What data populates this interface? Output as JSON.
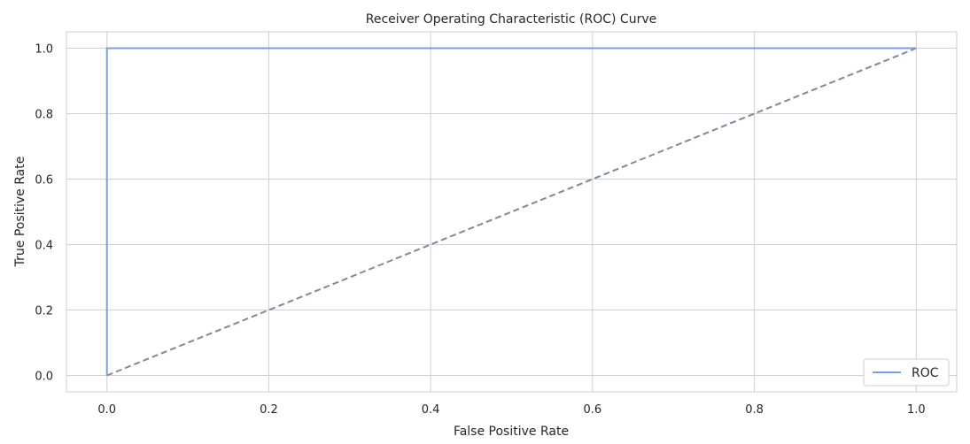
{
  "chart_data": {
    "type": "line",
    "title": "Receiver Operating Characteristic (ROC) Curve",
    "xlabel": "False Positive Rate",
    "ylabel": "True Positive Rate",
    "xlim": [
      -0.05,
      1.05
    ],
    "ylim": [
      -0.05,
      1.05
    ],
    "xticks": [
      0.0,
      0.2,
      0.4,
      0.6,
      0.8,
      1.0
    ],
    "yticks": [
      0.0,
      0.2,
      0.4,
      0.6,
      0.8,
      1.0
    ],
    "xtick_labels": [
      "0.0",
      "0.2",
      "0.4",
      "0.6",
      "0.8",
      "1.0"
    ],
    "ytick_labels": [
      "0.0",
      "0.2",
      "0.4",
      "0.6",
      "0.8",
      "1.0"
    ],
    "grid": true,
    "legend_position": "lower-right",
    "series": [
      {
        "name": "ROC",
        "style": "solid",
        "color": "#7b9ee0",
        "x": [
          0.0,
          0.0,
          1.0
        ],
        "y": [
          0.0,
          1.0,
          1.0
        ]
      },
      {
        "style": "dashed",
        "color": "#7d8a9c",
        "x": [
          0.0,
          1.0
        ],
        "y": [
          0.0,
          1.0
        ]
      }
    ]
  }
}
